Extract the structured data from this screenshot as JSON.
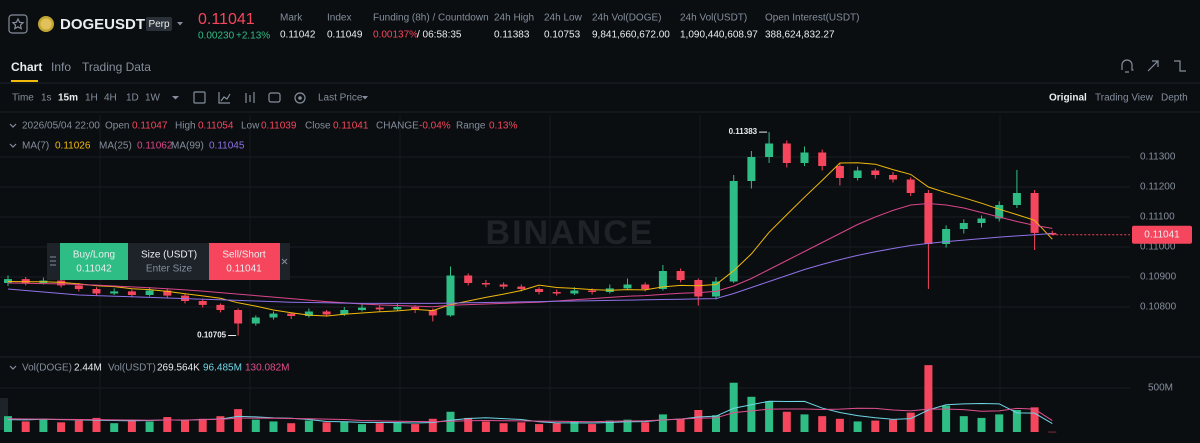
{
  "header": {
    "symbol": "DOGEUSDT",
    "badge": "Perp",
    "price": "0.11041",
    "change": "0.00230",
    "change_pct": "+2.13%",
    "stats": [
      {
        "label": "Mark",
        "value": "0.11042"
      },
      {
        "label": "Index",
        "value": "0.11049"
      },
      {
        "label": "Funding (8h) / Countdown",
        "value": "0.00137%",
        "value2": "/ 06:58:35"
      },
      {
        "label": "24h High",
        "value": "0.11383"
      },
      {
        "label": "24h Low",
        "value": "0.10753"
      },
      {
        "label": "24h Vol(DOGE)",
        "value": "9,841,660,672.00"
      },
      {
        "label": "24h Vol(USDT)",
        "value": "1,090,440,608.97"
      },
      {
        "label": "Open Interest(USDT)",
        "value": "388,624,832.27"
      }
    ]
  },
  "tabs": [
    "Chart",
    "Info",
    "Trading Data"
  ],
  "toolbar": {
    "intervals": [
      "Time",
      "1s",
      "15m",
      "1H",
      "4H",
      "1D",
      "1W"
    ],
    "price_type": "Last Price",
    "views": [
      "Original",
      "Trading View",
      "Depth"
    ]
  },
  "ohlc_bar": {
    "date": "2026/05/04 22:00",
    "open": "Open",
    "high": "High",
    "low": "Low",
    "close": "Close",
    "change_label": "CHANGE",
    "change": "-0.04%",
    "range_label": "Range",
    "range": "0.13%"
  },
  "order_widget": {
    "buy": "Buy/Long",
    "buy_price": "0.11042",
    "size": "Size (USDT)",
    "placeholder": "Enter Size",
    "sell": "Sell/Short",
    "sell_price": "0.11041"
  },
  "watermark": "BINANCE",
  "volume_legend": {
    "label": "Vol(DOGE)",
    "value": "2.44M",
    "label2": "Vol(USDT)",
    "value2": "269.564K",
    "ma_values": [
      "96.485M",
      "130.082M"
    ]
  },
  "chart_data": {
    "type": "candlestick",
    "up_color": "#2ebd85",
    "down_color": "#f6465d",
    "grid": true,
    "ylim": [
      0.1064,
      0.114
    ],
    "yticks": [
      {
        "value": 0.108,
        "label": "0.10800"
      },
      {
        "value": 0.109,
        "label": "0.10900"
      },
      {
        "value": 0.11,
        "label": "0.11000"
      },
      {
        "value": 0.111,
        "label": "0.11100"
      },
      {
        "value": 0.112,
        "label": "0.11200"
      },
      {
        "value": 0.113,
        "label": "0.11300"
      }
    ],
    "open": [
      0.1088,
      0.10893,
      0.1088,
      0.10888,
      0.10872,
      0.1086,
      0.10845,
      0.10852,
      0.1084,
      0.10855,
      0.10838,
      0.1082,
      0.10807,
      0.1079,
      0.10745,
      0.10765,
      0.10778,
      0.1077,
      0.10785,
      0.10775,
      0.1079,
      0.10798,
      0.10792,
      0.108,
      0.1079,
      0.10772,
      0.10905,
      0.1088,
      0.10875,
      0.10868,
      0.1086,
      0.1085,
      0.10845,
      0.10855,
      0.1085,
      0.10862,
      0.10875,
      0.1086,
      0.1092,
      0.1089,
      0.10835,
      0.10885,
      0.1122,
      0.113,
      0.11345,
      0.1128,
      0.11315,
      0.1127,
      0.1123,
      0.11255,
      0.1124,
      0.11225,
      0.1118,
      0.1101,
      0.1106,
      0.1108,
      0.11095,
      0.1114,
      0.1118,
      0.11047
    ],
    "high": [
      0.10905,
      0.109,
      0.10898,
      0.10892,
      0.1088,
      0.10866,
      0.10862,
      0.10858,
      0.10866,
      0.1086,
      0.10845,
      0.10828,
      0.10812,
      0.10795,
      0.10772,
      0.10785,
      0.10782,
      0.10795,
      0.1079,
      0.108,
      0.1081,
      0.10805,
      0.10812,
      0.10806,
      0.10795,
      0.10935,
      0.10912,
      0.1089,
      0.10882,
      0.10875,
      0.10866,
      0.10858,
      0.10866,
      0.10862,
      0.10875,
      0.10895,
      0.10882,
      0.1094,
      0.10928,
      0.10895,
      0.109,
      0.1124,
      0.1132,
      0.11383,
      0.11355,
      0.11335,
      0.11325,
      0.11278,
      0.11268,
      0.11262,
      0.1125,
      0.11232,
      0.1119,
      0.11072,
      0.11092,
      0.11105,
      0.11152,
      0.11257,
      0.1119,
      0.11054
    ],
    "low": [
      0.1087,
      0.10872,
      0.10875,
      0.10865,
      0.10852,
      0.10838,
      0.1084,
      0.10832,
      0.10835,
      0.1083,
      0.10812,
      0.10798,
      0.10782,
      0.10705,
      0.10738,
      0.10758,
      0.1076,
      0.10765,
      0.10768,
      0.1077,
      0.10785,
      0.10785,
      0.10788,
      0.1078,
      0.10752,
      0.10768,
      0.10872,
      0.10866,
      0.1086,
      0.10852,
      0.10842,
      0.10838,
      0.1084,
      0.10842,
      0.10845,
      0.10858,
      0.10852,
      0.10855,
      0.10882,
      0.10805,
      0.10825,
      0.1088,
      0.11195,
      0.1128,
      0.11265,
      0.1127,
      0.11255,
      0.11205,
      0.11222,
      0.11228,
      0.11215,
      0.1117,
      0.1086,
      0.10998,
      0.11045,
      0.11065,
      0.11085,
      0.1113,
      0.1099,
      0.11039
    ],
    "close": [
      0.10893,
      0.1088,
      0.10888,
      0.10872,
      0.1086,
      0.10845,
      0.10852,
      0.1084,
      0.10855,
      0.10838,
      0.1082,
      0.10807,
      0.1079,
      0.10745,
      0.10765,
      0.10778,
      0.1077,
      0.10785,
      0.10775,
      0.1079,
      0.10798,
      0.10792,
      0.108,
      0.1079,
      0.10772,
      0.10905,
      0.1088,
      0.10875,
      0.10868,
      0.1086,
      0.1085,
      0.10845,
      0.10855,
      0.1085,
      0.10862,
      0.10875,
      0.1086,
      0.1092,
      0.1089,
      0.10835,
      0.10885,
      0.1122,
      0.113,
      0.11345,
      0.1128,
      0.11315,
      0.1127,
      0.1123,
      0.11255,
      0.1124,
      0.11225,
      0.1118,
      0.1101,
      0.1106,
      0.1108,
      0.11095,
      0.1114,
      0.1118,
      0.11047,
      0.11041
    ],
    "ma": [
      {
        "name": "MA(7)",
        "color": "#f0b90b",
        "values": [
          0.10885,
          0.10884,
          0.10884,
          0.10882,
          0.10877,
          0.10871,
          0.10868,
          0.10861,
          0.10858,
          0.10852,
          0.10844,
          0.10837,
          0.10829,
          0.10814,
          0.10803,
          0.1079,
          0.10781,
          0.10773,
          0.1077,
          0.10776,
          0.1078,
          0.10784,
          0.10787,
          0.10792,
          0.10788,
          0.10808,
          0.1082,
          0.10832,
          0.10843,
          0.10855,
          0.10873,
          0.10865,
          0.10862,
          0.10858,
          0.10856,
          0.10858,
          0.10857,
          0.10867,
          0.10872,
          0.10871,
          0.10875,
          0.10921,
          0.10977,
          0.11049,
          0.11108,
          0.11166,
          0.11222,
          0.1128,
          0.11281,
          0.11276,
          0.11258,
          0.11242,
          0.112,
          0.11181,
          0.11164,
          0.11146,
          0.11126,
          0.11108,
          0.11089,
          0.11026
        ]
      },
      {
        "name": "MA(25)",
        "color": "#d9468a",
        "values": [
          0.1088,
          0.10879,
          0.10878,
          0.10877,
          0.10875,
          0.10873,
          0.1087,
          0.10867,
          0.10864,
          0.10861,
          0.10857,
          0.10853,
          0.10848,
          0.10843,
          0.10838,
          0.10833,
          0.10828,
          0.10823,
          0.10818,
          0.10814,
          0.1081,
          0.10807,
          0.10805,
          0.10803,
          0.10801,
          0.10806,
          0.10808,
          0.1081,
          0.10812,
          0.10814,
          0.10816,
          0.1082,
          0.10824,
          0.10828,
          0.10832,
          0.10836,
          0.10838,
          0.10842,
          0.10846,
          0.10848,
          0.10852,
          0.1087,
          0.10895,
          0.10925,
          0.10955,
          0.10985,
          0.11015,
          0.11045,
          0.11075,
          0.111,
          0.11122,
          0.1114,
          0.11145,
          0.1114,
          0.1113,
          0.11115,
          0.111,
          0.11085,
          0.11072,
          0.11062
        ]
      },
      {
        "name": "MA(99)",
        "color": "#8f72e8",
        "values": [
          0.1086,
          0.10855,
          0.1085,
          0.10845,
          0.1084,
          0.10838,
          0.10836,
          0.10834,
          0.10832,
          0.1083,
          0.10828,
          0.10826,
          0.10824,
          0.10822,
          0.1082,
          0.10818,
          0.10816,
          0.10815,
          0.10814,
          0.10813,
          0.10812,
          0.10812,
          0.10812,
          0.10812,
          0.10812,
          0.10813,
          0.10814,
          0.10815,
          0.10816,
          0.10817,
          0.10818,
          0.10819,
          0.1082,
          0.10821,
          0.10822,
          0.10823,
          0.10824,
          0.10825,
          0.10826,
          0.10827,
          0.10828,
          0.10845,
          0.10865,
          0.10885,
          0.10905,
          0.10925,
          0.10942,
          0.10958,
          0.10972,
          0.10984,
          0.10995,
          0.11005,
          0.11012,
          0.11018,
          0.11023,
          0.11028,
          0.11033,
          0.11037,
          0.11041,
          0.11045
        ]
      }
    ],
    "volume": {
      "ylim": [
        0,
        800000000
      ],
      "yticks": [
        {
          "value": 500000000,
          "label": "500M"
        }
      ],
      "values": [
        180000000,
        120000000,
        150000000,
        110000000,
        130000000,
        160000000,
        100000000,
        140000000,
        120000000,
        170000000,
        130000000,
        150000000,
        180000000,
        260000000,
        140000000,
        120000000,
        100000000,
        130000000,
        110000000,
        120000000,
        90000000,
        100000000,
        110000000,
        90000000,
        150000000,
        230000000,
        160000000,
        120000000,
        100000000,
        110000000,
        90000000,
        100000000,
        120000000,
        90000000,
        130000000,
        140000000,
        110000000,
        200000000,
        150000000,
        250000000,
        190000000,
        560000000,
        400000000,
        350000000,
        230000000,
        200000000,
        180000000,
        150000000,
        120000000,
        130000000,
        140000000,
        220000000,
        760000000,
        300000000,
        180000000,
        160000000,
        200000000,
        250000000,
        280000000,
        2440000
      ],
      "ma": [
        {
          "color": "#6fd6e6",
          "values": [
            140000000,
            138000000,
            145000000,
            140000000,
            138000000,
            134000000,
            130000000,
            128000000,
            130000000,
            138000000,
            134000000,
            142000000,
            146000000,
            178000000,
            172000000,
            160000000,
            156000000,
            142000000,
            120000000,
            116000000,
            110000000,
            108000000,
            106000000,
            102000000,
            108000000,
            134000000,
            154000000,
            162000000,
            152000000,
            142000000,
            116000000,
            104000000,
            104000000,
            102000000,
            108000000,
            116000000,
            118000000,
            138000000,
            146000000,
            170000000,
            180000000,
            270000000,
            310000000,
            350000000,
            346000000,
            348000000,
            272000000,
            222000000,
            186000000,
            162000000,
            144000000,
            152000000,
            250000000,
            310000000,
            320000000,
            324000000,
            320000000,
            218000000,
            214000000,
            96485000
          ]
        },
        {
          "color": "#e0508f",
          "values": [
            150000000,
            148000000,
            146000000,
            144000000,
            142000000,
            140000000,
            138000000,
            136000000,
            134000000,
            136000000,
            137000000,
            140000000,
            144000000,
            158000000,
            158000000,
            156000000,
            153000000,
            150000000,
            146000000,
            142000000,
            130000000,
            126000000,
            122000000,
            120000000,
            118000000,
            122000000,
            128000000,
            130000000,
            128000000,
            126000000,
            124000000,
            122000000,
            120000000,
            116000000,
            122000000,
            125000000,
            128000000,
            136000000,
            148000000,
            156000000,
            160000000,
            220000000,
            240000000,
            260000000,
            262000000,
            262000000,
            256000000,
            260000000,
            270000000,
            268000000,
            250000000,
            240000000,
            260000000,
            260000000,
            254000000,
            236000000,
            240000000,
            268000000,
            260000000,
            130082000
          ]
        }
      ]
    }
  }
}
